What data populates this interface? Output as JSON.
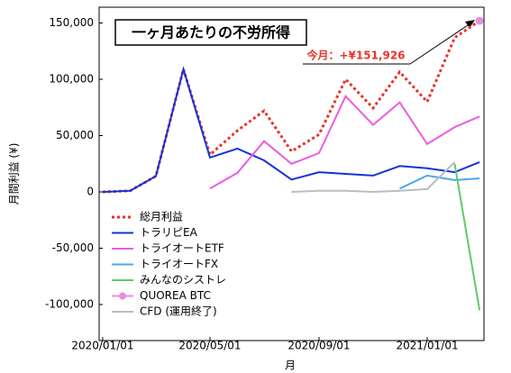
{
  "chart_data": {
    "type": "line",
    "title": "一ヶ月あたりの不労所得",
    "annotation": "今月：+¥151,926",
    "xlabel": "月",
    "ylabel": "月間利益 (¥)",
    "x": [
      "2020/01/01",
      "2020/02/01",
      "2020/03/01",
      "2020/04/01",
      "2020/05/01",
      "2020/06/01",
      "2020/07/01",
      "2020/08/01",
      "2020/09/01",
      "2020/10/01",
      "2020/11/01",
      "2020/12/01",
      "2021/01/01",
      "2021/02/01",
      "2021/03/01"
    ],
    "xlim": [
      "2019/12/28",
      "2021/03/06"
    ],
    "xticks": [
      "2020/01/01",
      "2020/05/01",
      "2020/09/01",
      "2021/01/01"
    ],
    "ylim": [
      -132000,
      164000
    ],
    "yticks": [
      {
        "value": -100000,
        "label": "-100,000"
      },
      {
        "value": -50000,
        "label": "-50,000"
      },
      0,
      {
        "value": 50000,
        "label": "50,000"
      },
      {
        "value": 100000,
        "label": "100,000"
      },
      {
        "value": 150000,
        "label": "150,000"
      }
    ],
    "legend": "lower left",
    "series": [
      {
        "name": "総月利益",
        "color": "#e8332a",
        "style": "dotted",
        "values": [
          0,
          1000,
          14000,
          109000,
          33000,
          54500,
          72000,
          36000,
          51000,
          100000,
          74500,
          106500,
          80000,
          137000,
          151926
        ]
      },
      {
        "name": "トラリピEA",
        "color": "#1533d6",
        "style": "solid",
        "values": [
          0,
          1000,
          14000,
          109000,
          30500,
          38500,
          28000,
          11000,
          17500,
          16000,
          14500,
          23000,
          21000,
          17500,
          26500
        ]
      },
      {
        "name": "トライオートETF",
        "color": "#e85ee0",
        "style": "solid",
        "values": [
          null,
          null,
          null,
          null,
          3000,
          17000,
          45000,
          25000,
          34500,
          85000,
          59500,
          79500,
          42500,
          57500,
          67000
        ]
      },
      {
        "name": "トライオートFX",
        "color": "#4aa8ec",
        "style": "solid",
        "values": [
          null,
          null,
          null,
          null,
          null,
          null,
          null,
          null,
          null,
          null,
          null,
          3000,
          14500,
          10500,
          12000
        ]
      },
      {
        "name": "みんなのシストレ",
        "color": "#5ccc6a",
        "style": "solid",
        "values": [
          null,
          null,
          null,
          null,
          null,
          null,
          null,
          null,
          null,
          null,
          null,
          null,
          null,
          25000,
          -105000
        ]
      },
      {
        "name": "QUOREA BTC",
        "color": "#e88ee0",
        "style": "marker",
        "values": [
          null,
          null,
          null,
          null,
          null,
          null,
          null,
          null,
          null,
          null,
          null,
          null,
          null,
          null,
          151926
        ]
      },
      {
        "name": "CFD (運用終了)",
        "color": "#bdbdbd",
        "style": "solid",
        "values": [
          null,
          null,
          null,
          null,
          null,
          null,
          null,
          0,
          1000,
          1000,
          0,
          1000,
          2500,
          26500,
          null
        ]
      }
    ]
  }
}
